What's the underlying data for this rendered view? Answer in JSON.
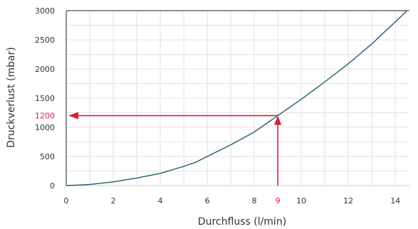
{
  "chart_data": {
    "type": "line",
    "xlabel": "Durchfluss (l/min)",
    "ylabel": "Druckverlust (mbar)",
    "xlim": [
      0,
      14.6
    ],
    "ylim": [
      0,
      3000
    ],
    "x_ticks": [
      0,
      2,
      4,
      6,
      8,
      10,
      12,
      14
    ],
    "y_ticks": [
      0,
      500,
      1000,
      1500,
      2000,
      2500,
      3000
    ],
    "grid": true,
    "x_minor_step": 1,
    "y_minor_step": 250,
    "series": [
      {
        "color": "#1a5e6e",
        "points": [
          [
            0,
            0
          ],
          [
            1,
            20
          ],
          [
            2,
            65
          ],
          [
            3,
            130
          ],
          [
            4,
            210
          ],
          [
            5,
            330
          ],
          [
            5.5,
            400
          ],
          [
            6,
            500
          ],
          [
            7,
            700
          ],
          [
            8,
            920
          ],
          [
            9,
            1200
          ],
          [
            10,
            1480
          ],
          [
            11,
            1780
          ],
          [
            12,
            2090
          ],
          [
            13,
            2430
          ],
          [
            14,
            2810
          ],
          [
            14.5,
            3000
          ]
        ]
      }
    ],
    "annotation": {
      "x": 9,
      "y": 1200,
      "x_label": "9",
      "y_label": "1200",
      "color": "#d41e3c"
    }
  }
}
